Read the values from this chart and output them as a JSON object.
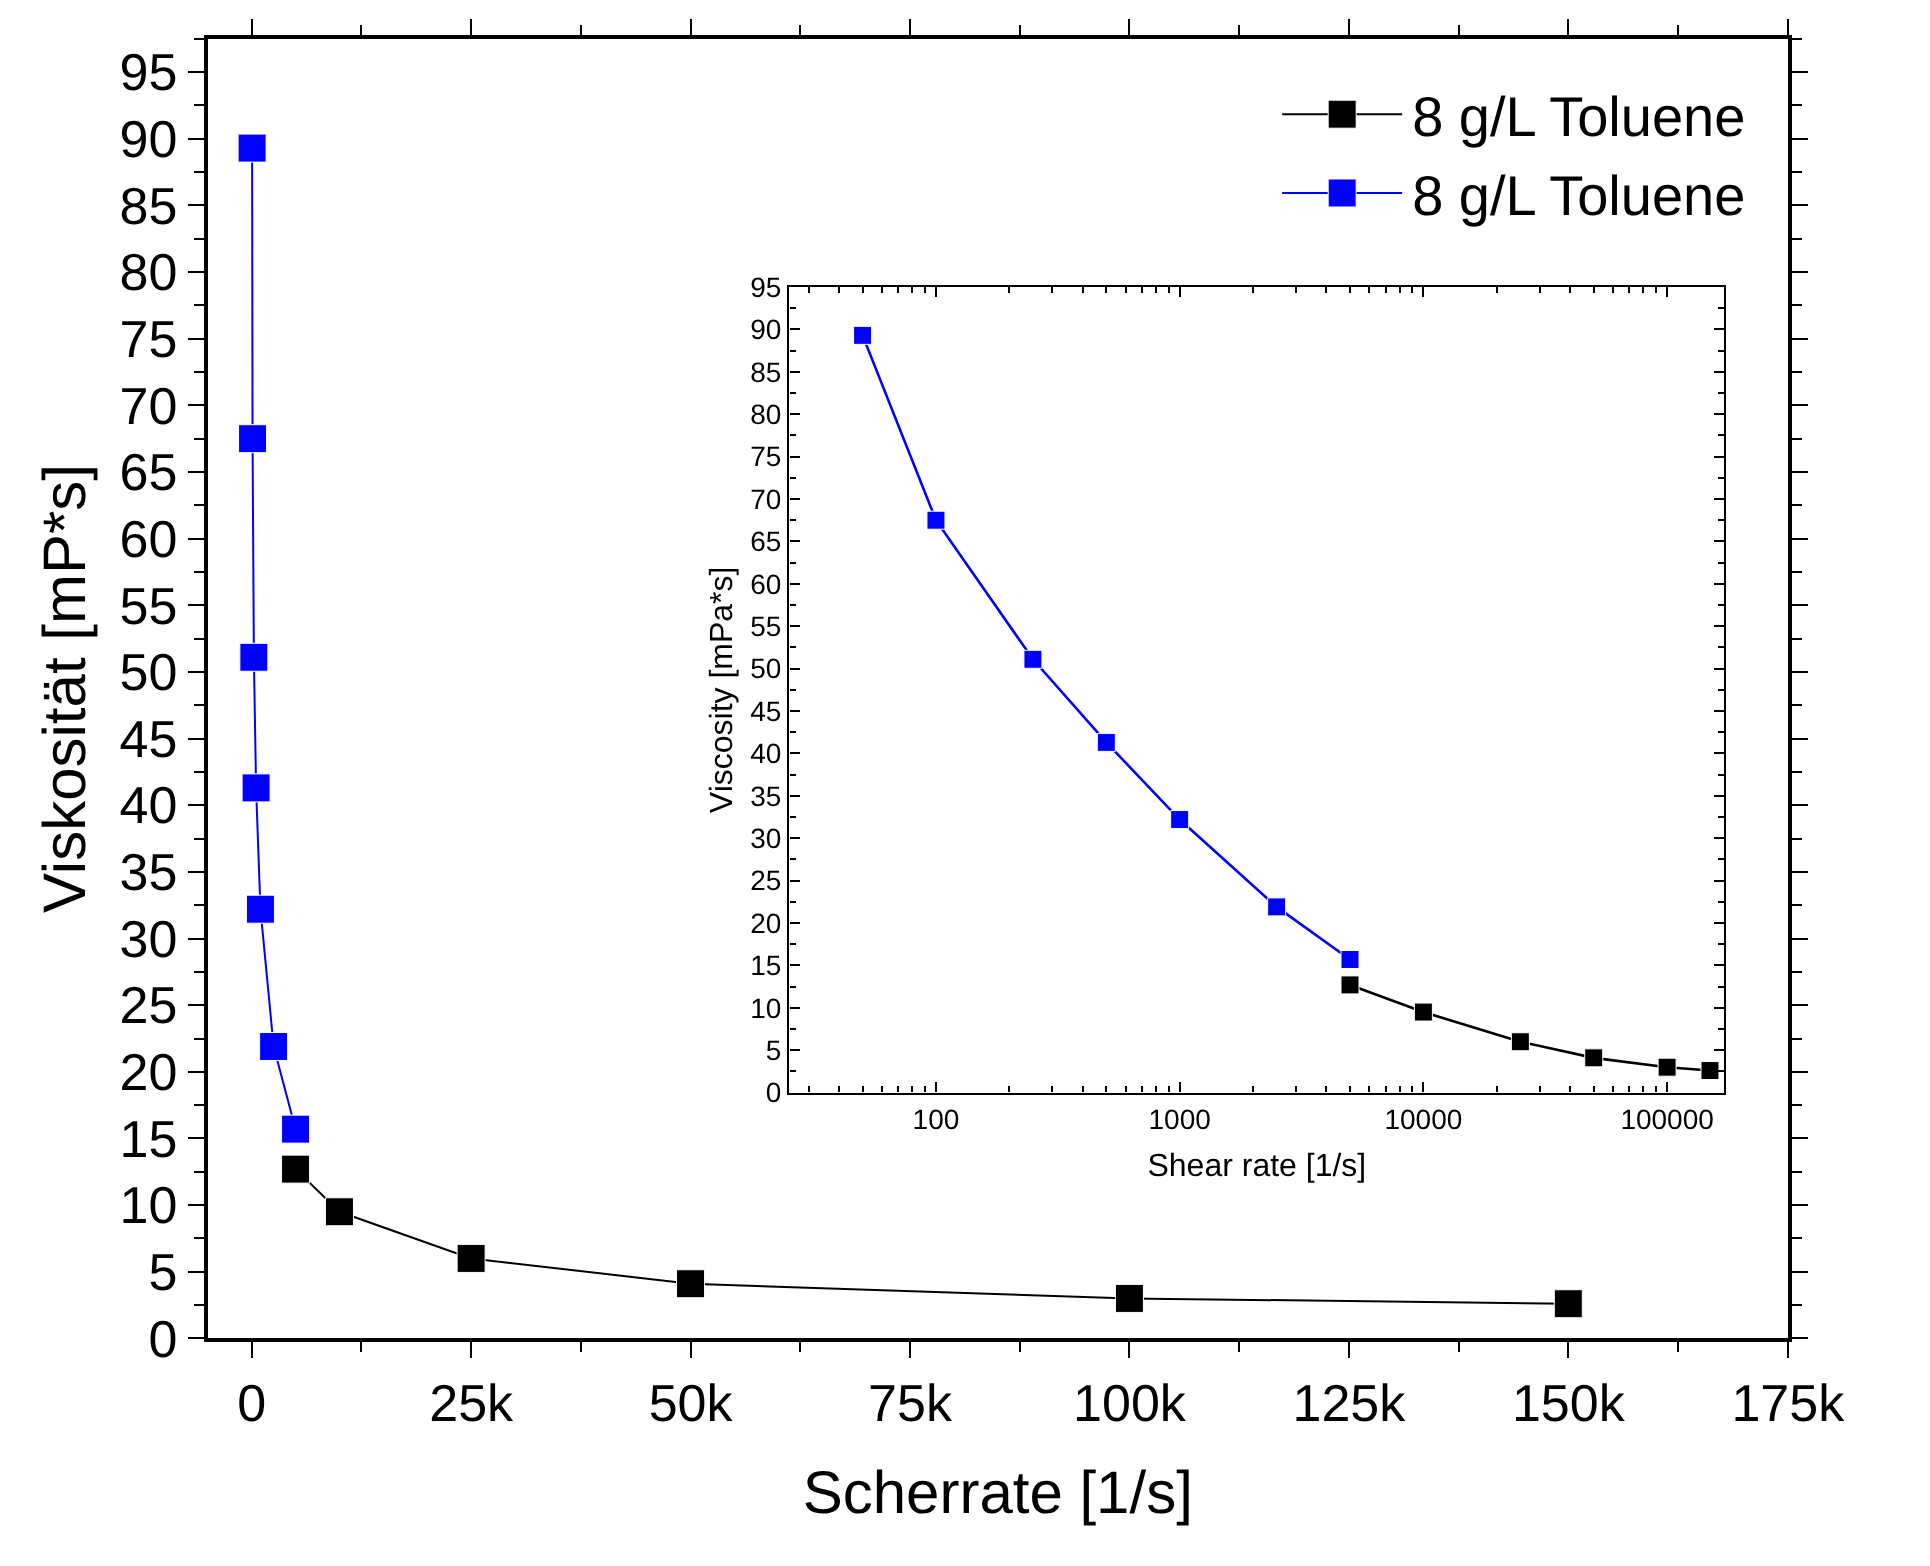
{
  "chart_data": [
    {
      "type": "line",
      "xlabel": "Scherrate [1/s]",
      "ylabel": "Viskosität [mP*s]",
      "marker": "square",
      "line_style": "solid",
      "legend": "top right",
      "xlim": [
        -5000,
        175000
      ],
      "xticks": [
        {
          "value": 0,
          "label": "0"
        },
        {
          "value": 25000,
          "label": "25k"
        },
        {
          "value": 50000,
          "label": "50k"
        },
        {
          "value": 75000,
          "label": "75k"
        },
        {
          "value": 100000,
          "label": "100k"
        },
        {
          "value": 125000,
          "label": "125k"
        },
        {
          "value": 150000,
          "label": "150k"
        },
        {
          "value": 175000,
          "label": "175k"
        }
      ],
      "ylim": [
        0,
        97.5
      ],
      "yticks": [
        0,
        5,
        10,
        15,
        20,
        25,
        30,
        35,
        40,
        45,
        50,
        55,
        60,
        65,
        70,
        75,
        80,
        85,
        90,
        95
      ],
      "series": [
        {
          "name": "8 g/L Toluene",
          "color": "#000000",
          "x": [
            5000,
            10000,
            25000,
            50000,
            100000,
            150000
          ],
          "values": [
            12.7,
            9.5,
            6.0,
            4.1,
            3.0,
            2.6
          ]
        },
        {
          "name": "8 g/L Toluene",
          "color": "#0000ff",
          "x": [
            50,
            100,
            250,
            500,
            1000,
            2500,
            5000
          ],
          "values": [
            89.3,
            67.5,
            51.1,
            41.3,
            32.2,
            21.9,
            15.7
          ]
        }
      ]
    },
    {
      "type": "line",
      "xlabel": "Shear rate [1/s]",
      "ylabel": "Viscosity [mPa*s]",
      "marker": "square",
      "line_style": "solid",
      "log": "x",
      "xlim": [
        25,
        172000
      ],
      "xticks": [
        100,
        1000,
        10000,
        100000
      ],
      "ylim": [
        0,
        95
      ],
      "yticks": [
        0,
        5,
        10,
        15,
        20,
        25,
        30,
        35,
        40,
        45,
        50,
        55,
        60,
        65,
        70,
        75,
        80,
        85,
        90,
        95
      ],
      "series": [
        {
          "color": "#000000",
          "x": [
            5000,
            10000,
            25000,
            50000,
            100000,
            150000
          ],
          "values": [
            12.7,
            9.5,
            6.0,
            4.1,
            3.0,
            2.6
          ]
        },
        {
          "color": "#0000ff",
          "x": [
            50,
            100,
            250,
            500,
            1000,
            2500,
            5000
          ],
          "values": [
            89.3,
            67.5,
            51.1,
            41.3,
            32.2,
            21.9,
            15.7
          ]
        }
      ]
    }
  ]
}
